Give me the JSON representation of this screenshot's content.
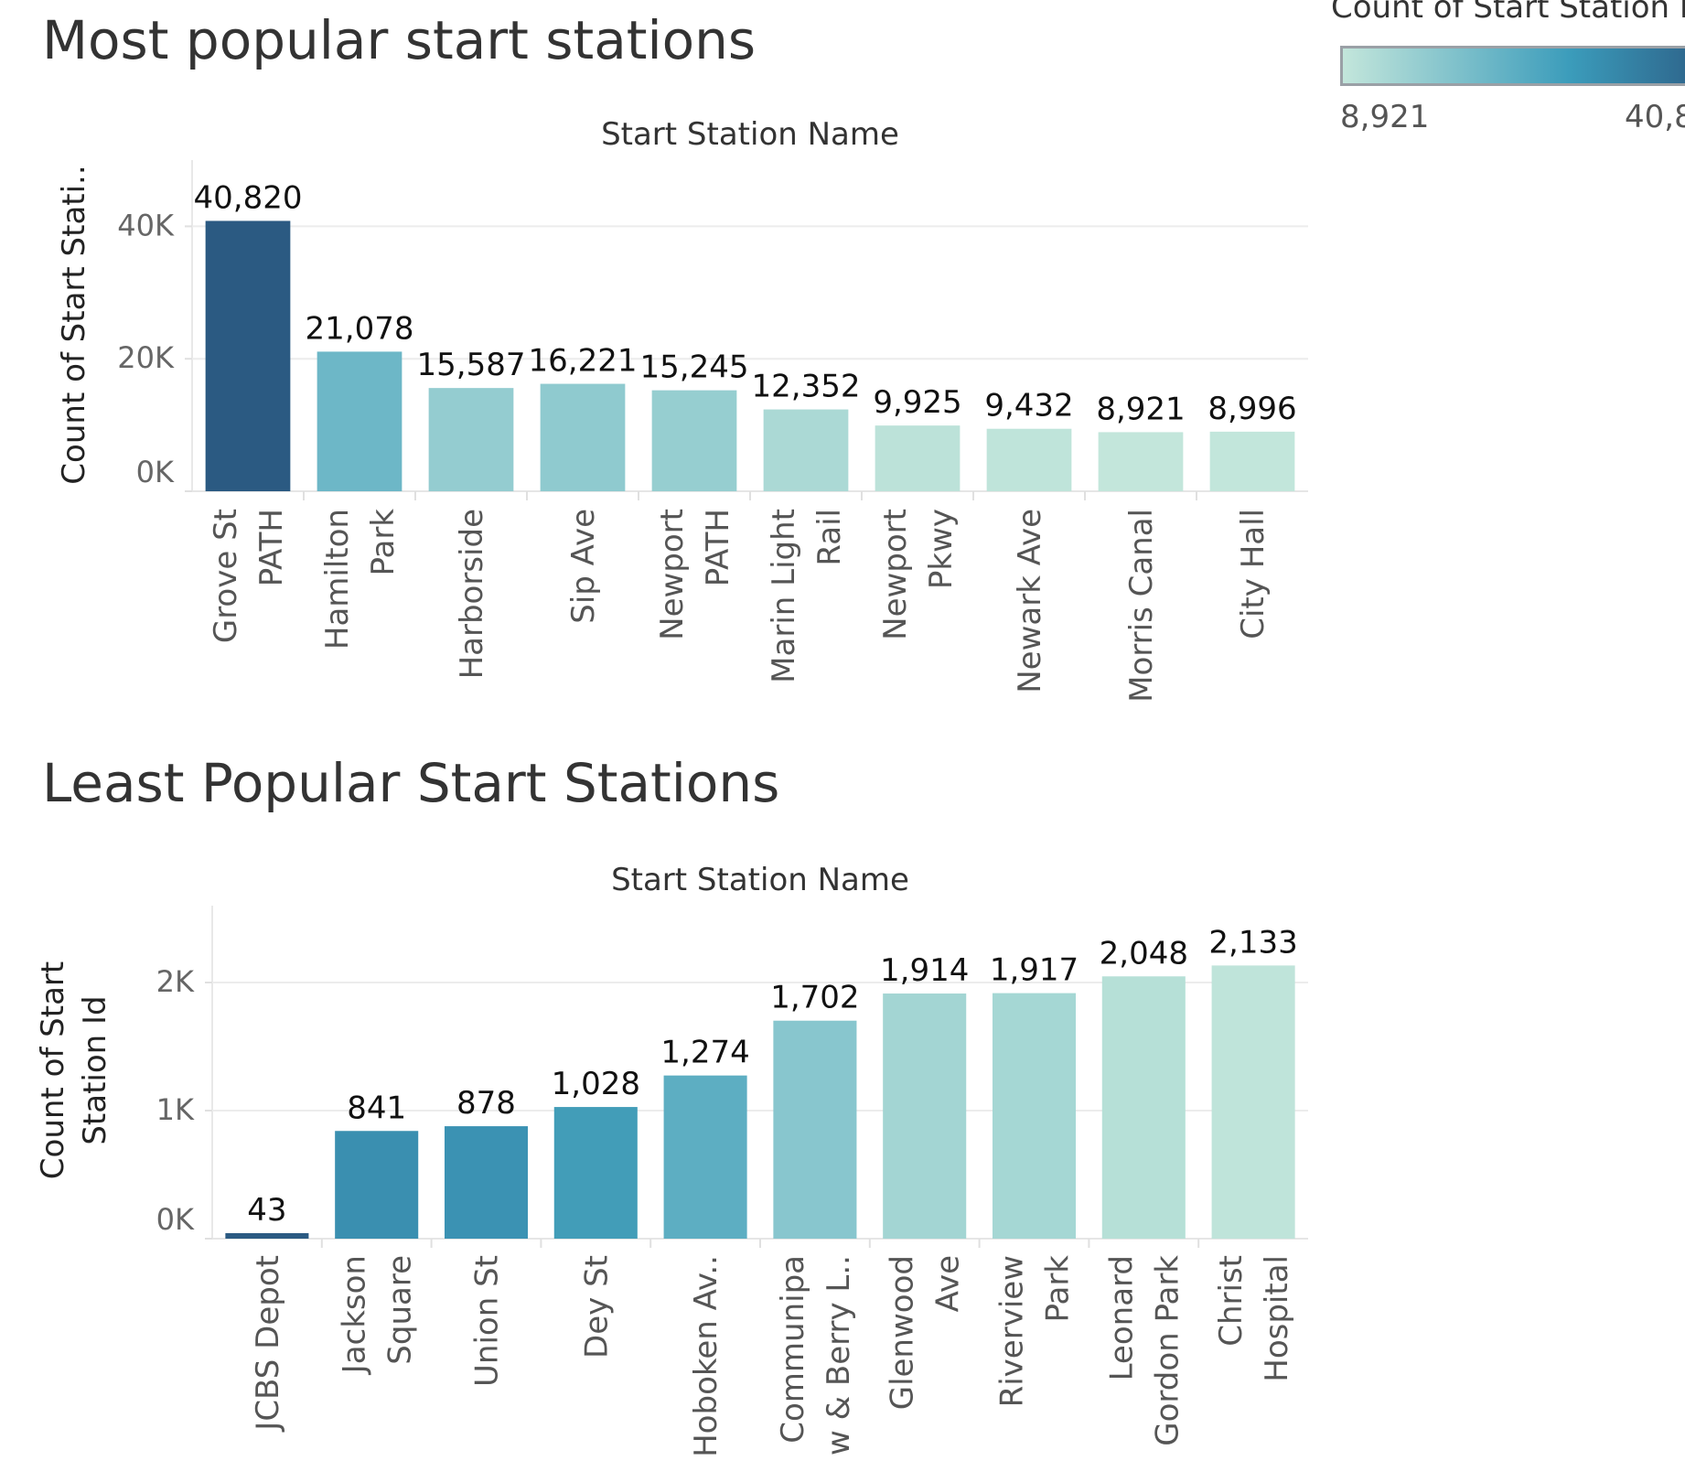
{
  "titles": {
    "top": "Most popular start stations",
    "bottom": "Least Popular Start Stations"
  },
  "legend": {
    "title": "Count of Start Station I",
    "min_label": "8,921",
    "max_label": "40,8",
    "color_low": "#c3e6db",
    "color_mid": "#3b9cbb",
    "color_high": "#2b5a82"
  },
  "chart_data": [
    {
      "type": "bar",
      "title": "Most popular start stations",
      "xlabel": "Start Station Name",
      "ylabel": "Count of Start Stati..",
      "ylim": [
        0,
        50000
      ],
      "yticks": [
        0,
        20000,
        40000
      ],
      "ytick_labels": [
        "0K",
        "20K",
        "40K"
      ],
      "grid": true,
      "categories": [
        [
          "Grove St",
          "PATH"
        ],
        [
          "Hamilton",
          "Park"
        ],
        [
          "Harborside"
        ],
        [
          "Sip Ave"
        ],
        [
          "Newport",
          "PATH"
        ],
        [
          "Marin Light",
          "Rail"
        ],
        [
          "Newport",
          "Pkwy"
        ],
        [
          "Newark Ave"
        ],
        [
          "Morris Canal"
        ],
        [
          "City Hall"
        ]
      ],
      "values": [
        40820,
        21078,
        15587,
        16221,
        15245,
        12352,
        9925,
        9432,
        8921,
        8996
      ],
      "value_labels": [
        "40,820",
        "21,078",
        "15,587",
        "16,221",
        "15,245",
        "12,352",
        "9,925",
        "9,432",
        "8,921",
        "8,996"
      ],
      "color_domain": [
        8921,
        40820
      ]
    },
    {
      "type": "bar",
      "title": "Least Popular Start Stations",
      "xlabel": "Start Station Name",
      "ylabel": [
        "Count of Start",
        "Station Id"
      ],
      "ylim": [
        0,
        2600
      ],
      "yticks": [
        0,
        1000,
        2000
      ],
      "ytick_labels": [
        "0K",
        "1K",
        "2K"
      ],
      "grid": true,
      "categories": [
        [
          "JCBS Depot"
        ],
        [
          "Jackson",
          "Square"
        ],
        [
          "Union St"
        ],
        [
          "Dey St"
        ],
        [
          "Hoboken Av.."
        ],
        [
          "Communipa",
          "w & Berry L.."
        ],
        [
          "Glenwood",
          "Ave"
        ],
        [
          "Riverview",
          "Park"
        ],
        [
          "Leonard",
          "Gordon Park"
        ],
        [
          "Christ",
          "Hospital"
        ]
      ],
      "values": [
        43,
        841,
        878,
        1028,
        1274,
        1702,
        1914,
        1917,
        2048,
        2133
      ],
      "value_labels": [
        "43",
        "841",
        "878",
        "1,028",
        "1,274",
        "1,702",
        "1,914",
        "1,917",
        "2,048",
        "2,133"
      ],
      "colors": [
        "#2b5a82",
        "#3a8fb0",
        "#3b92b3",
        "#429db8",
        "#5daec2",
        "#88c6ce",
        "#a3d5d3",
        "#a5d7d4",
        "#b6e0d7",
        "#bfe4da"
      ]
    }
  ]
}
